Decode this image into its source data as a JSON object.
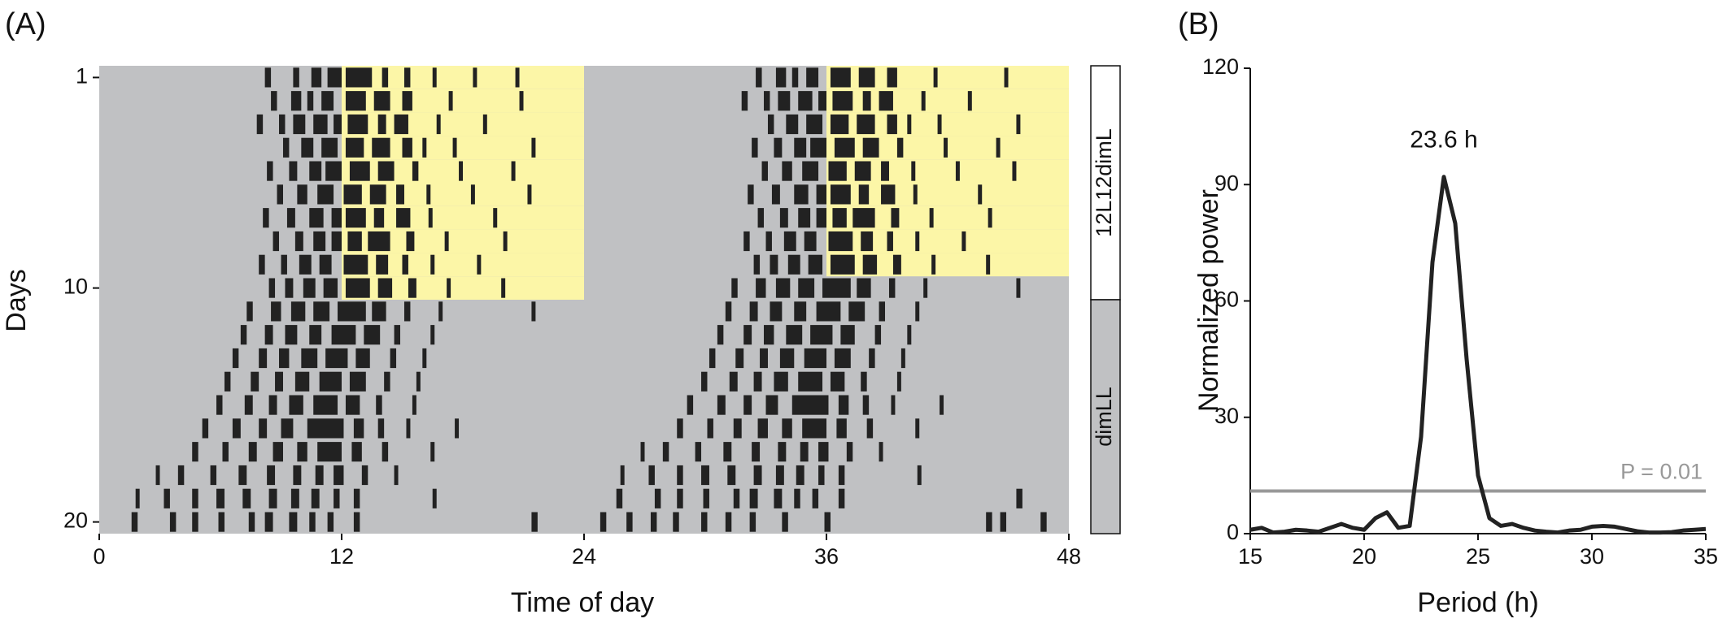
{
  "chart_data": [
    {
      "type": "actogram",
      "panel_label": "(A)",
      "xlabel": "Time of day",
      "ylabel": "Days",
      "xlim": [
        0,
        48
      ],
      "xticks": [
        0,
        12,
        24,
        36,
        48
      ],
      "ylim": [
        0.5,
        20.5
      ],
      "yticks": [
        1,
        10,
        20
      ],
      "background_color": "#c0c1c3",
      "light_color": "#fcf6a7",
      "bar_color": "#222222",
      "light_window": [
        12,
        24
      ],
      "light_days": [
        1,
        10
      ],
      "phases": [
        {
          "label": "12L12dimL",
          "days": [
            1,
            10
          ],
          "color": "#ffffff"
        },
        {
          "label": "dimLL",
          "days": [
            11,
            20
          ],
          "color": "#c0c1c3"
        }
      ],
      "days": [
        [
          [
            8.2,
            8.5
          ],
          [
            9.6,
            9.9
          ],
          [
            10.5,
            11
          ],
          [
            11.3,
            12
          ],
          [
            12.2,
            13.5
          ],
          [
            14,
            14.3
          ],
          [
            15.1,
            15.4
          ],
          [
            16.5,
            16.7
          ],
          [
            18.5,
            18.7
          ],
          [
            20.6,
            20.8
          ]
        ],
        [
          [
            8.5,
            8.8
          ],
          [
            9.5,
            10
          ],
          [
            10.3,
            10.6
          ],
          [
            11,
            11.6
          ],
          [
            12.2,
            13.2
          ],
          [
            13.6,
            14.4
          ],
          [
            15,
            15.5
          ],
          [
            17.3,
            17.5
          ],
          [
            20.8,
            21
          ]
        ],
        [
          [
            7.8,
            8.1
          ],
          [
            8.9,
            9.2
          ],
          [
            9.6,
            10.2
          ],
          [
            10.6,
            11.3
          ],
          [
            11.6,
            12
          ],
          [
            12.3,
            13.3
          ],
          [
            13.8,
            14.2
          ],
          [
            14.6,
            15.3
          ],
          [
            16.7,
            16.9
          ],
          [
            19,
            19.2
          ]
        ],
        [
          [
            9.1,
            9.4
          ],
          [
            10,
            10.6
          ],
          [
            11,
            11.8
          ],
          [
            12.2,
            13.1
          ],
          [
            13.5,
            14.4
          ],
          [
            15,
            15.5
          ],
          [
            16,
            16.2
          ],
          [
            17.5,
            17.7
          ],
          [
            21.4,
            21.6
          ]
        ],
        [
          [
            8.3,
            8.6
          ],
          [
            9.4,
            9.8
          ],
          [
            10.4,
            11
          ],
          [
            11.2,
            12
          ],
          [
            12.4,
            13.4
          ],
          [
            13.8,
            14.6
          ],
          [
            15.5,
            15.8
          ],
          [
            17.8,
            18
          ],
          [
            20.4,
            20.6
          ]
        ],
        [
          [
            8.8,
            9.1
          ],
          [
            9.8,
            10.3
          ],
          [
            10.8,
            11.6
          ],
          [
            12.1,
            13
          ],
          [
            13.4,
            14.2
          ],
          [
            14.7,
            15.1
          ],
          [
            16.2,
            16.4
          ],
          [
            18.4,
            18.6
          ],
          [
            21.2,
            21.4
          ]
        ],
        [
          [
            8.1,
            8.4
          ],
          [
            9.3,
            9.7
          ],
          [
            10.4,
            11.1
          ],
          [
            11.5,
            12
          ],
          [
            12.2,
            13.2
          ],
          [
            13.6,
            14.1
          ],
          [
            14.7,
            15.4
          ],
          [
            16.3,
            16.5
          ],
          [
            19.5,
            19.7
          ]
        ],
        [
          [
            8.6,
            8.9
          ],
          [
            9.7,
            10.1
          ],
          [
            10.6,
            11.2
          ],
          [
            11.5,
            12
          ],
          [
            12.3,
            13
          ],
          [
            13.3,
            14.4
          ],
          [
            15.2,
            15.6
          ],
          [
            17.1,
            17.3
          ],
          [
            20,
            20.2
          ]
        ],
        [
          [
            7.9,
            8.2
          ],
          [
            9,
            9.3
          ],
          [
            9.9,
            10.5
          ],
          [
            10.9,
            11.5
          ],
          [
            12.1,
            13.3
          ],
          [
            13.7,
            14.3
          ],
          [
            15,
            15.3
          ],
          [
            16.4,
            16.6
          ],
          [
            18.7,
            18.9
          ]
        ],
        [
          [
            8.4,
            8.7
          ],
          [
            9.2,
            9.6
          ],
          [
            10.1,
            10.7
          ],
          [
            11.1,
            11.8
          ],
          [
            12.2,
            13.4
          ],
          [
            13.8,
            14.5
          ],
          [
            15.3,
            15.7
          ],
          [
            17.2,
            17.4
          ],
          [
            19.9,
            20.1
          ]
        ],
        [
          [
            7.3,
            7.6
          ],
          [
            8.5,
            9
          ],
          [
            9.5,
            10.2
          ],
          [
            10.6,
            11.4
          ],
          [
            11.8,
            13.2
          ],
          [
            13.5,
            14.2
          ],
          [
            15.1,
            15.4
          ],
          [
            16.8,
            17
          ],
          [
            21.4,
            21.6
          ]
        ],
        [
          [
            7,
            7.3
          ],
          [
            8.2,
            8.6
          ],
          [
            9.2,
            9.8
          ],
          [
            10.4,
            11
          ],
          [
            11.5,
            12.7
          ],
          [
            13.1,
            13.9
          ],
          [
            14.6,
            14.9
          ],
          [
            16.4,
            16.6
          ]
        ],
        [
          [
            6.6,
            6.9
          ],
          [
            7.9,
            8.3
          ],
          [
            8.9,
            9.4
          ],
          [
            10,
            10.8
          ],
          [
            11.2,
            12.3
          ],
          [
            12.7,
            13.4
          ],
          [
            14.4,
            14.7
          ],
          [
            16,
            16.2
          ]
        ],
        [
          [
            6.2,
            6.5
          ],
          [
            7.5,
            7.9
          ],
          [
            8.7,
            9.1
          ],
          [
            9.7,
            10.4
          ],
          [
            10.9,
            12
          ],
          [
            12.4,
            13.2
          ],
          [
            14.1,
            14.4
          ],
          [
            15.7,
            15.9
          ]
        ],
        [
          [
            5.8,
            6.1
          ],
          [
            7.2,
            7.6
          ],
          [
            8.4,
            8.8
          ],
          [
            9.4,
            10.1
          ],
          [
            10.6,
            11.8
          ],
          [
            12.2,
            12.9
          ],
          [
            13.7,
            14
          ],
          [
            15.5,
            15.7
          ]
        ],
        [
          [
            5.1,
            5.4
          ],
          [
            6.6,
            7
          ],
          [
            7.9,
            8.3
          ],
          [
            9,
            9.6
          ],
          [
            10.3,
            12.1
          ],
          [
            12.6,
            13.1
          ],
          [
            13.8,
            14.1
          ],
          [
            15.2,
            15.4
          ],
          [
            17.6,
            17.8
          ]
        ],
        [
          [
            4.6,
            4.9
          ],
          [
            6.1,
            6.4
          ],
          [
            7.4,
            7.8
          ],
          [
            8.6,
            9.1
          ],
          [
            9.8,
            10.3
          ],
          [
            10.8,
            12
          ],
          [
            12.5,
            13
          ],
          [
            14,
            14.3
          ],
          [
            16.4,
            16.6
          ]
        ],
        [
          [
            2.8,
            3
          ],
          [
            3.9,
            4.2
          ],
          [
            5.5,
            5.8
          ],
          [
            6.9,
            7.3
          ],
          [
            8.3,
            8.7
          ],
          [
            9.6,
            10
          ],
          [
            10.7,
            11.1
          ],
          [
            11.6,
            12.1
          ],
          [
            13,
            13.3
          ],
          [
            14.6,
            14.8
          ]
        ],
        [
          [
            1.8,
            2
          ],
          [
            3.2,
            3.5
          ],
          [
            4.6,
            4.9
          ],
          [
            5.8,
            6.2
          ],
          [
            7.1,
            7.5
          ],
          [
            8.4,
            8.8
          ],
          [
            9.5,
            9.9
          ],
          [
            10.5,
            10.9
          ],
          [
            11.6,
            11.9
          ],
          [
            12.6,
            12.9
          ],
          [
            16.5,
            16.7
          ]
        ],
        [
          [
            1.6,
            1.9
          ],
          [
            3.5,
            3.8
          ],
          [
            4.6,
            4.9
          ],
          [
            5.9,
            6.2
          ],
          [
            7.4,
            7.7
          ],
          [
            8.2,
            8.6
          ],
          [
            9.4,
            9.8
          ],
          [
            10.4,
            10.7
          ],
          [
            11.3,
            11.6
          ],
          [
            12.6,
            12.9
          ],
          [
            21.4,
            21.7
          ]
        ],
        [
          [
            0.8,
            1.1
          ],
          [
            2.1,
            2.4
          ],
          [
            3.3,
            3.6
          ],
          [
            4.4,
            4.7
          ],
          [
            5.8,
            6.1
          ],
          [
            7,
            7.3
          ],
          [
            8.2,
            8.5
          ],
          [
            9.8,
            10.1
          ],
          [
            11.9,
            12.2
          ],
          [
            19.9,
            20.2
          ],
          [
            20.6,
            20.9
          ],
          [
            22.6,
            22.9
          ]
        ]
      ]
    },
    {
      "type": "line",
      "panel_label": "(B)",
      "xlabel": "Period (h)",
      "ylabel": "Normalized power",
      "xlim": [
        15,
        35
      ],
      "xticks": [
        15,
        20,
        25,
        30,
        35
      ],
      "ylim": [
        0,
        120
      ],
      "yticks": [
        0,
        30,
        60,
        90,
        120
      ],
      "annotation": "23.6 h",
      "threshold": 11,
      "threshold_label": "P = 0.01",
      "threshold_color": "#999999",
      "x": [
        15,
        15.5,
        16,
        16.5,
        17,
        17.5,
        18,
        18.5,
        19,
        19.5,
        20,
        20.5,
        21,
        21.5,
        22,
        22.5,
        23,
        23.5,
        24,
        24.5,
        25,
        25.5,
        26,
        26.5,
        27,
        27.5,
        28,
        28.5,
        29,
        29.5,
        30,
        30.5,
        31,
        31.5,
        32,
        32.5,
        33,
        33.5,
        34,
        34.5,
        35
      ],
      "series": [
        {
          "color": "#222222",
          "values": [
            1,
            1.5,
            0.3,
            0.5,
            1,
            0.8,
            0.5,
            1.5,
            2.5,
            1.5,
            1,
            4,
            5.5,
            1.5,
            2,
            25,
            70,
            92,
            80,
            45,
            15,
            4,
            2,
            2.5,
            1.5,
            0.8,
            0.5,
            0.3,
            0.8,
            1,
            1.8,
            2,
            1.8,
            1.2,
            0.6,
            0.3,
            0.3,
            0.4,
            0.8,
            1,
            1.2
          ]
        }
      ]
    }
  ]
}
